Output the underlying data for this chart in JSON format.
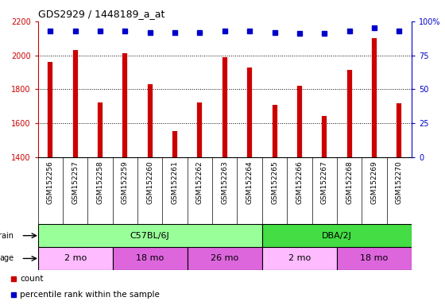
{
  "title": "GDS2929 / 1448189_a_at",
  "samples": [
    "GSM152256",
    "GSM152257",
    "GSM152258",
    "GSM152259",
    "GSM152260",
    "GSM152261",
    "GSM152262",
    "GSM152263",
    "GSM152264",
    "GSM152265",
    "GSM152266",
    "GSM152267",
    "GSM152268",
    "GSM152269",
    "GSM152270"
  ],
  "counts": [
    1960,
    2030,
    1720,
    2010,
    1830,
    1555,
    1720,
    1990,
    1930,
    1710,
    1820,
    1640,
    1915,
    2100,
    1715
  ],
  "percentile_ranks": [
    93,
    93,
    93,
    93,
    92,
    92,
    92,
    93,
    93,
    92,
    91,
    91,
    93,
    95,
    93
  ],
  "ylim_left": [
    1400,
    2200
  ],
  "ylim_right": [
    0,
    100
  ],
  "right_ticks": [
    0,
    25,
    50,
    75,
    100
  ],
  "right_tick_labels": [
    "0",
    "25",
    "50",
    "75",
    "100%"
  ],
  "left_ticks": [
    1400,
    1600,
    1800,
    2000,
    2200
  ],
  "dotted_lines": [
    1600,
    1800,
    2000
  ],
  "bar_color": "#cc0000",
  "dot_color": "#0000cc",
  "strain_groups": [
    {
      "label": "C57BL/6J",
      "start": 0,
      "end": 9,
      "color": "#99ff99"
    },
    {
      "label": "DBA/2J",
      "start": 9,
      "end": 15,
      "color": "#44dd44"
    }
  ],
  "age_groups": [
    {
      "label": "2 mo",
      "start": 0,
      "end": 3,
      "color": "#ffbbff"
    },
    {
      "label": "18 mo",
      "start": 3,
      "end": 6,
      "color": "#dd66dd"
    },
    {
      "label": "26 mo",
      "start": 6,
      "end": 9,
      "color": "#dd66dd"
    },
    {
      "label": "2 mo",
      "start": 9,
      "end": 12,
      "color": "#ffbbff"
    },
    {
      "label": "18 mo",
      "start": 12,
      "end": 15,
      "color": "#dd66dd"
    }
  ],
  "strain_label": "strain",
  "age_label": "age",
  "legend_count_label": "count",
  "legend_pct_label": "percentile rank within the sample",
  "axis_left_color": "#cc0000",
  "axis_right_color": "#0000cc",
  "background_color": "#ffffff",
  "plot_bg_color": "#ffffff",
  "xtick_bg_color": "#dddddd"
}
